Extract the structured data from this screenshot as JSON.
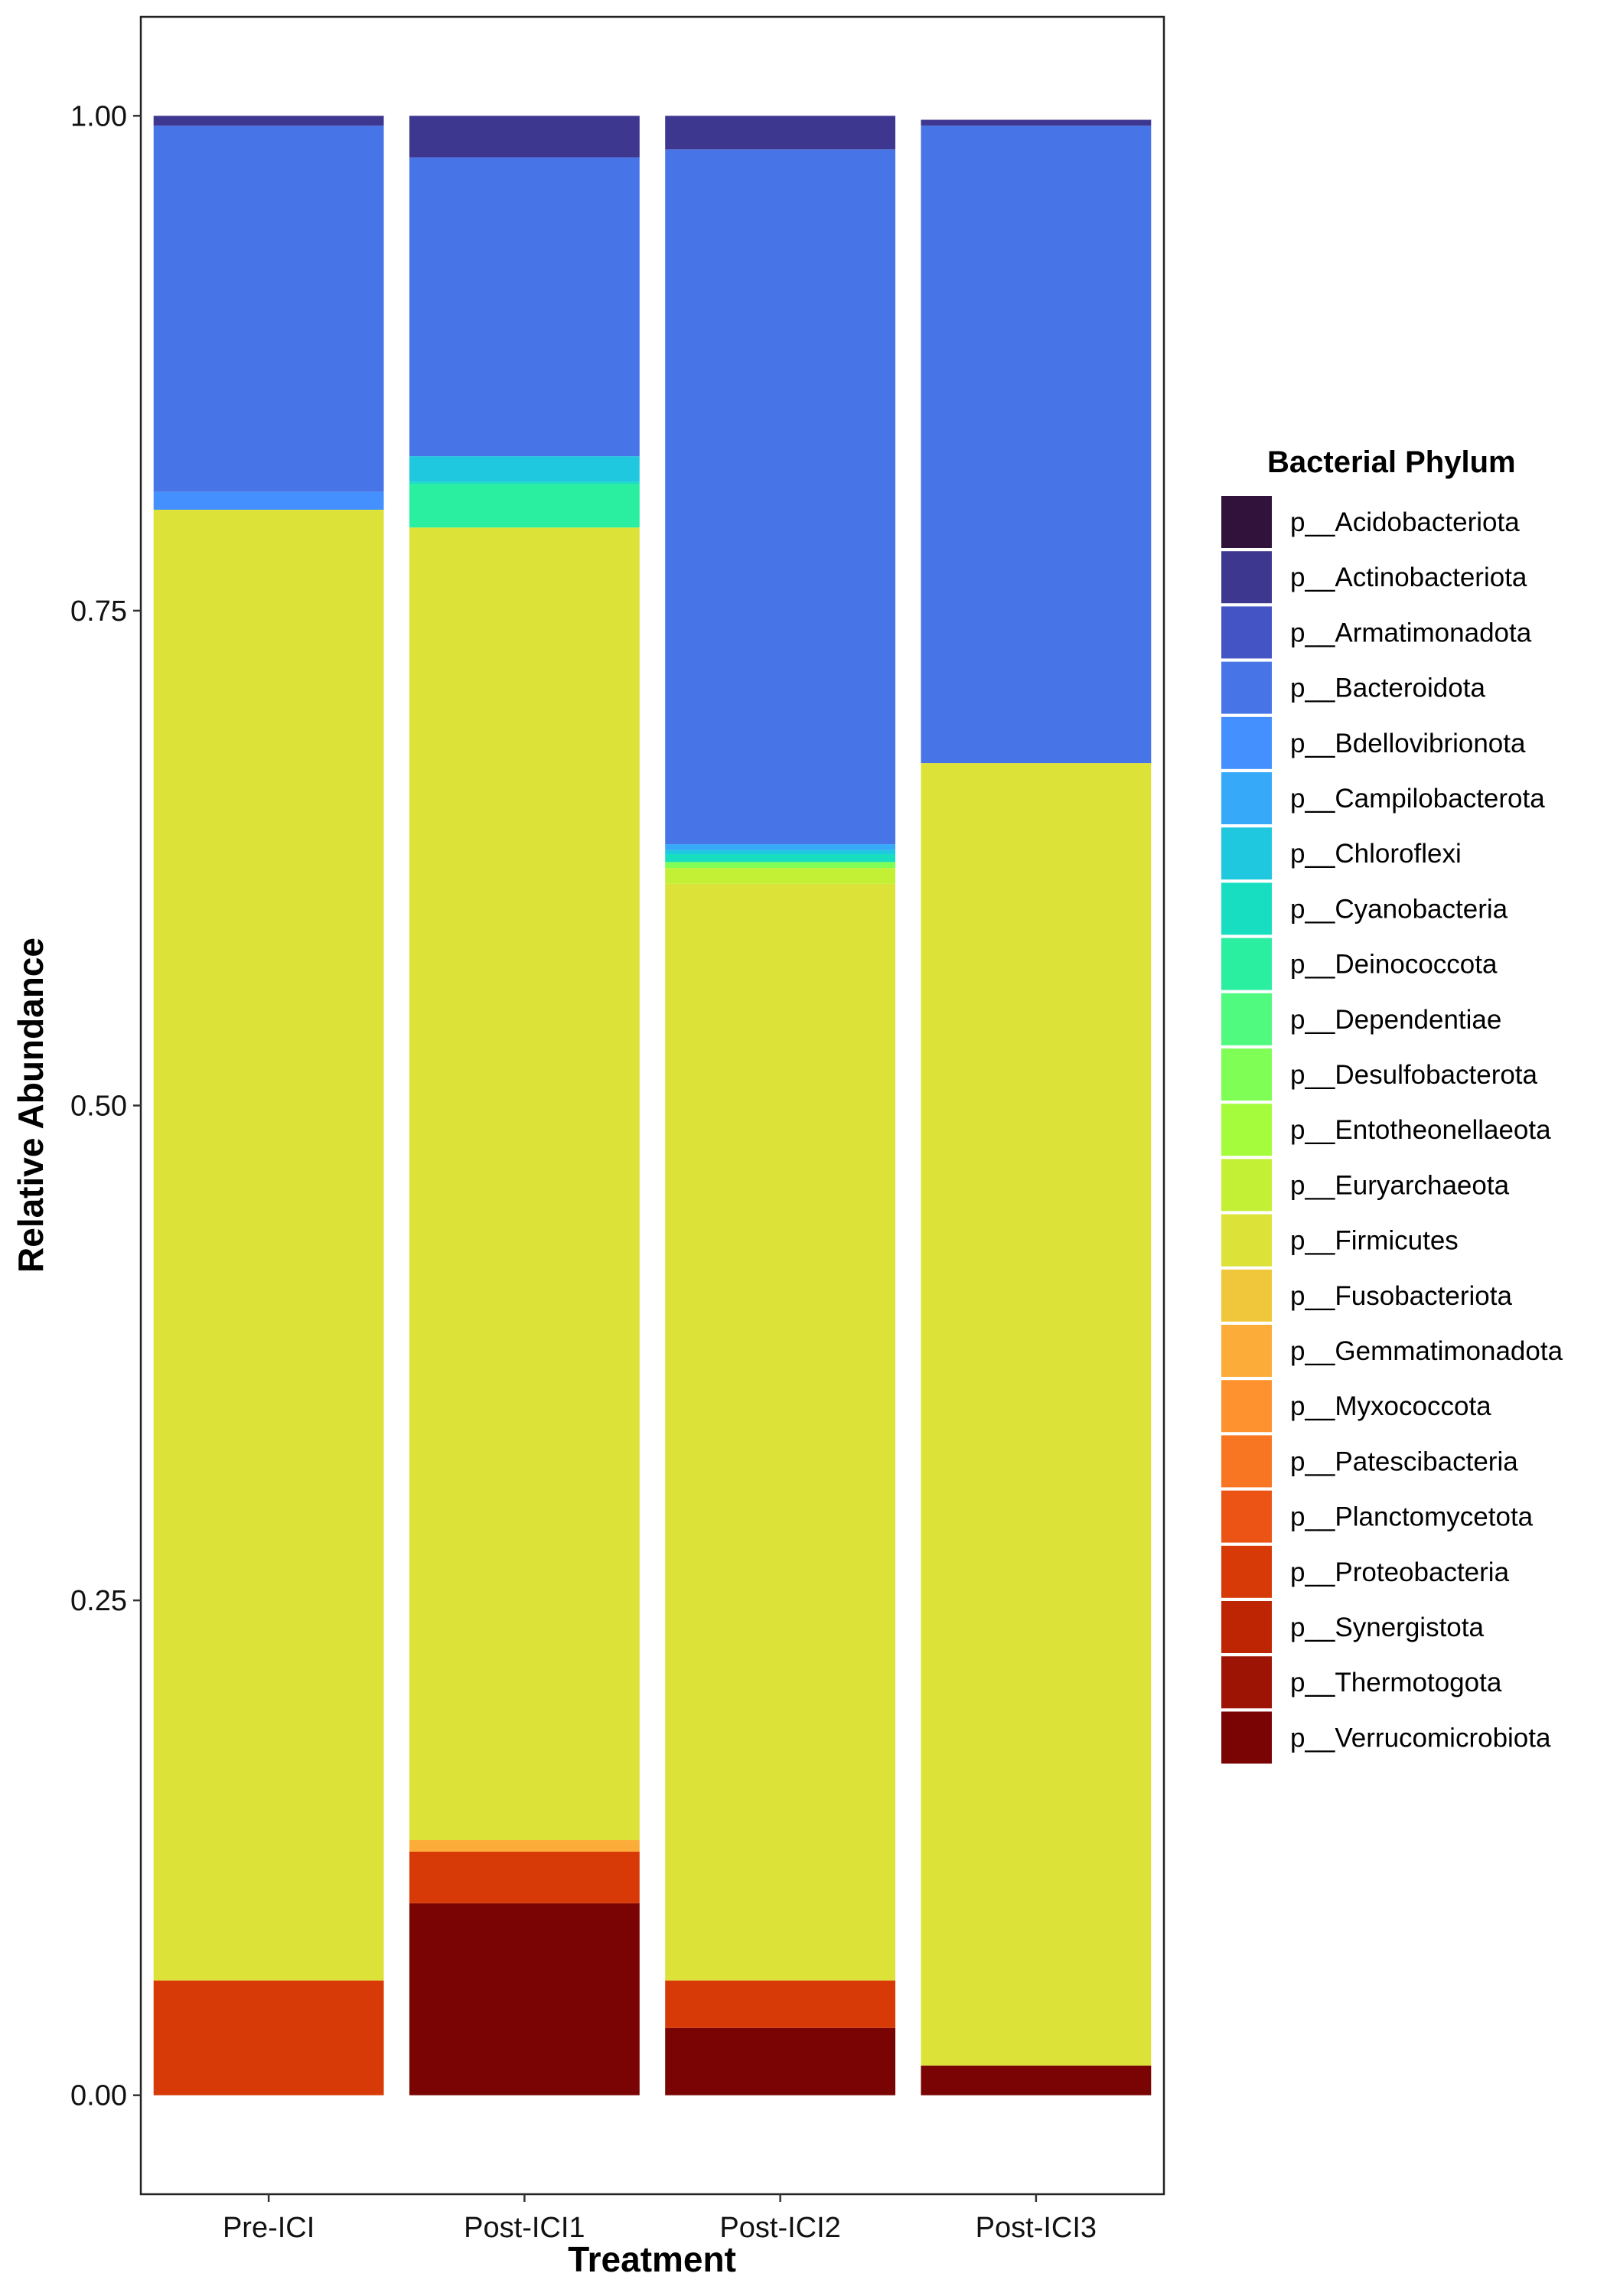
{
  "chart_data": {
    "type": "bar",
    "stacked": true,
    "xlabel": "Treatment",
    "ylabel": "Relative Abundance",
    "ylim": [
      -0.05,
      1.05
    ],
    "yticks": [
      "0.00",
      "0.25",
      "0.50",
      "0.75",
      "1.00"
    ],
    "ytick_values": [
      0,
      0.25,
      0.5,
      0.75,
      1.0
    ],
    "grid": false,
    "legend": {
      "title": "Bacterial Phylum",
      "placement": "right"
    },
    "categories": [
      "Pre-ICI",
      "Post-ICI1",
      "Post-ICI2",
      "Post-ICI3"
    ],
    "series": [
      {
        "name": "p__Acidobacteriota",
        "color": "#30123B",
        "values": [
          0,
          0,
          0,
          0
        ]
      },
      {
        "name": "p__Actinobacteriota",
        "color": "#3E378F",
        "values": [
          0.005,
          0.021,
          0.017,
          0.003
        ]
      },
      {
        "name": "p__Armatimonadota",
        "color": "#4454C4",
        "values": [
          0,
          0,
          0,
          0
        ]
      },
      {
        "name": "p__Bacteroidota",
        "color": "#4775E8",
        "values": [
          0.185,
          0.151,
          0.351,
          0.322
        ]
      },
      {
        "name": "p__Bdellovibrionota",
        "color": "#4490FE",
        "values": [
          0.009,
          0,
          0,
          0
        ]
      },
      {
        "name": "p__Campilobacterota",
        "color": "#36AAF9",
        "values": [
          0,
          0,
          0.003,
          0
        ]
      },
      {
        "name": "p__Chloroflexi",
        "color": "#1FC8DE",
        "values": [
          0,
          0.013,
          0.002,
          0
        ]
      },
      {
        "name": "p__Cyanobacteria",
        "color": "#18DEC1",
        "values": [
          0,
          0.001,
          0.004,
          0
        ]
      },
      {
        "name": "p__Deinococcota",
        "color": "#2AEFA1",
        "values": [
          0,
          0.022,
          0,
          0
        ]
      },
      {
        "name": "p__Dependentiae",
        "color": "#4FFA7F",
        "values": [
          0,
          0,
          0,
          0
        ]
      },
      {
        "name": "p__Desulfobacterota",
        "color": "#7FFE55",
        "values": [
          0,
          0,
          0.003,
          0
        ]
      },
      {
        "name": "p__Entotheonellaeota",
        "color": "#A4FC3C",
        "values": [
          0,
          0,
          0,
          0
        ]
      },
      {
        "name": "p__Euryarchaeota",
        "color": "#C3F034",
        "values": [
          0,
          0,
          0.008,
          0
        ]
      },
      {
        "name": "p__Firmicutes",
        "color": "#DCE238",
        "values": [
          0.743,
          0.663,
          0.554,
          0.658
        ]
      },
      {
        "name": "p__Fusobacteriota",
        "color": "#F0C63A",
        "values": [
          0,
          0,
          0,
          0
        ]
      },
      {
        "name": "p__Gemmatimonadota",
        "color": "#FCAC38",
        "values": [
          0,
          0.006,
          0,
          0
        ]
      },
      {
        "name": "p__Myxococcota",
        "color": "#FD922F",
        "values": [
          0,
          0,
          0,
          0
        ]
      },
      {
        "name": "p__Patescibacteria",
        "color": "#F87622",
        "values": [
          0,
          0,
          0,
          0
        ]
      },
      {
        "name": "p__Planctomycetota",
        "color": "#EB5414",
        "values": [
          0,
          0,
          0,
          0
        ]
      },
      {
        "name": "p__Proteobacteria",
        "color": "#D83A07",
        "values": [
          0.058,
          0.026,
          0.024,
          0
        ]
      },
      {
        "name": "p__Synergistota",
        "color": "#BD2503",
        "values": [
          0,
          0,
          0,
          0
        ]
      },
      {
        "name": "p__Thermotogota",
        "color": "#9D1404",
        "values": [
          0,
          0,
          0,
          0
        ]
      },
      {
        "name": "p__Verrucomicrobiota",
        "color": "#7A0403",
        "values": [
          0,
          0.097,
          0.034,
          0.015
        ]
      }
    ]
  }
}
